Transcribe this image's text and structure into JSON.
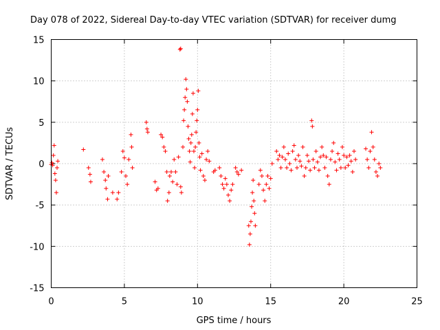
{
  "chart_data": {
    "type": "scatter",
    "title": "Day 078 of 2022, Sidereal Day-to-day VTEC variation (SDTVAR) for receiver dumg",
    "xlabel": "GPS time / hours",
    "ylabel": "SDTVAR / TECUs",
    "xlim": [
      0,
      25
    ],
    "ylim": [
      -15,
      15
    ],
    "x_ticks": [
      "0",
      "5",
      "10",
      "15",
      "20",
      "25"
    ],
    "y_ticks": [
      "15",
      "10",
      "5",
      "0",
      "-5",
      "-10",
      "-15"
    ],
    "grid": true,
    "marker": "plus",
    "color": "#ff0000",
    "series": [
      {
        "name": "SDTVAR",
        "points": [
          [
            0.0,
            -0.1
          ],
          [
            0.05,
            0.1
          ],
          [
            0.1,
            -0.2
          ],
          [
            0.15,
            1.0
          ],
          [
            0.2,
            2.2
          ],
          [
            0.25,
            -1.2
          ],
          [
            0.3,
            -2.0
          ],
          [
            0.35,
            -3.5
          ],
          [
            0.4,
            -0.5
          ],
          [
            0.45,
            0.3
          ],
          [
            2.2,
            1.7
          ],
          [
            2.55,
            -0.5
          ],
          [
            2.65,
            -1.3
          ],
          [
            2.7,
            -2.2
          ],
          [
            3.5,
            0.5
          ],
          [
            3.6,
            -1.0
          ],
          [
            3.7,
            -2.0
          ],
          [
            3.75,
            -3.0
          ],
          [
            3.85,
            -4.3
          ],
          [
            3.9,
            -1.5
          ],
          [
            4.2,
            -3.5
          ],
          [
            4.5,
            -4.3
          ],
          [
            4.6,
            -3.5
          ],
          [
            4.8,
            -1.0
          ],
          [
            4.9,
            1.5
          ],
          [
            5.0,
            0.7
          ],
          [
            5.1,
            -1.5
          ],
          [
            5.2,
            -2.5
          ],
          [
            5.3,
            0.5
          ],
          [
            5.45,
            3.5
          ],
          [
            5.5,
            2.0
          ],
          [
            5.55,
            -0.5
          ],
          [
            6.5,
            5.0
          ],
          [
            6.55,
            4.2
          ],
          [
            6.6,
            3.8
          ],
          [
            7.1,
            -2.2
          ],
          [
            7.2,
            -3.2
          ],
          [
            7.3,
            -3.0
          ],
          [
            7.5,
            3.5
          ],
          [
            7.6,
            3.2
          ],
          [
            7.7,
            2.0
          ],
          [
            7.8,
            1.5
          ],
          [
            7.9,
            -1.0
          ],
          [
            7.95,
            -4.5
          ],
          [
            8.05,
            -3.5
          ],
          [
            8.1,
            -1.5
          ],
          [
            8.2,
            -1.0
          ],
          [
            8.3,
            -2.2
          ],
          [
            8.4,
            0.5
          ],
          [
            8.5,
            -1.0
          ],
          [
            8.6,
            -2.5
          ],
          [
            8.7,
            0.8
          ],
          [
            8.85,
            -2.8
          ],
          [
            8.9,
            -3.5
          ],
          [
            8.8,
            13.8
          ],
          [
            8.85,
            13.9
          ],
          [
            9.0,
            2.0
          ],
          [
            9.05,
            5.2
          ],
          [
            9.1,
            6.5
          ],
          [
            9.15,
            8.0
          ],
          [
            9.2,
            10.2
          ],
          [
            9.25,
            9.0
          ],
          [
            9.3,
            7.5
          ],
          [
            9.35,
            4.5
          ],
          [
            9.4,
            3.0
          ],
          [
            9.45,
            1.5
          ],
          [
            9.5,
            0.2
          ],
          [
            9.55,
            2.5
          ],
          [
            9.6,
            3.5
          ],
          [
            9.65,
            6.0
          ],
          [
            9.7,
            8.5
          ],
          [
            9.75,
            1.5
          ],
          [
            9.8,
            -0.5
          ],
          [
            9.85,
            2.0
          ],
          [
            9.9,
            3.8
          ],
          [
            9.95,
            5.2
          ],
          [
            10.0,
            6.5
          ],
          [
            10.05,
            8.8
          ],
          [
            10.1,
            2.5
          ],
          [
            10.15,
            0.8
          ],
          [
            10.2,
            -0.8
          ],
          [
            10.3,
            1.2
          ],
          [
            10.4,
            -1.5
          ],
          [
            10.5,
            -2.0
          ],
          [
            10.6,
            0.5
          ],
          [
            10.7,
            1.5
          ],
          [
            10.8,
            0.3
          ],
          [
            11.1,
            -1.0
          ],
          [
            11.2,
            -0.8
          ],
          [
            11.5,
            -0.5
          ],
          [
            11.6,
            -1.5
          ],
          [
            11.7,
            -2.5
          ],
          [
            11.8,
            -3.0
          ],
          [
            11.9,
            -1.8
          ],
          [
            12.0,
            -2.5
          ],
          [
            12.1,
            -3.8
          ],
          [
            12.2,
            -4.5
          ],
          [
            12.3,
            -3.2
          ],
          [
            12.4,
            -2.5
          ],
          [
            12.6,
            -0.5
          ],
          [
            12.7,
            -1.0
          ],
          [
            12.8,
            -1.3
          ],
          [
            13.0,
            -0.8
          ],
          [
            13.5,
            -7.5
          ],
          [
            13.55,
            -9.8
          ],
          [
            13.6,
            -8.5
          ],
          [
            13.65,
            -7.0
          ],
          [
            13.7,
            -5.2
          ],
          [
            13.75,
            -3.5
          ],
          [
            13.8,
            -2.0
          ],
          [
            13.85,
            -4.5
          ],
          [
            13.9,
            -6.0
          ],
          [
            13.95,
            -7.5
          ],
          [
            14.2,
            -2.5
          ],
          [
            14.3,
            -0.8
          ],
          [
            14.4,
            -1.5
          ],
          [
            14.5,
            -3.2
          ],
          [
            14.6,
            -4.5
          ],
          [
            14.7,
            -2.5
          ],
          [
            14.8,
            -1.5
          ],
          [
            14.9,
            -3.0
          ],
          [
            15.0,
            -1.8
          ],
          [
            15.1,
            0.0
          ],
          [
            15.4,
            1.5
          ],
          [
            15.5,
            0.5
          ],
          [
            15.6,
            1.0
          ],
          [
            15.7,
            -0.5
          ],
          [
            15.8,
            0.8
          ],
          [
            15.9,
            2.0
          ],
          [
            16.0,
            0.5
          ],
          [
            16.1,
            -0.5
          ],
          [
            16.2,
            1.2
          ],
          [
            16.3,
            0.0
          ],
          [
            16.4,
            -0.8
          ],
          [
            16.5,
            1.5
          ],
          [
            16.6,
            2.2
          ],
          [
            16.7,
            0.5
          ],
          [
            16.8,
            -0.5
          ],
          [
            16.9,
            1.0
          ],
          [
            17.0,
            0.3
          ],
          [
            17.1,
            -0.3
          ],
          [
            17.2,
            2.0
          ],
          [
            17.3,
            -1.5
          ],
          [
            17.4,
            -0.5
          ],
          [
            17.5,
            1.0
          ],
          [
            17.6,
            0.3
          ],
          [
            17.7,
            -0.8
          ],
          [
            17.8,
            5.2
          ],
          [
            17.85,
            4.5
          ],
          [
            17.9,
            0.5
          ],
          [
            18.0,
            -0.5
          ],
          [
            18.1,
            1.5
          ],
          [
            18.2,
            0.2
          ],
          [
            18.3,
            -0.8
          ],
          [
            18.4,
            0.8
          ],
          [
            18.5,
            2.0
          ],
          [
            18.6,
            1.0
          ],
          [
            18.7,
            -0.5
          ],
          [
            18.8,
            0.8
          ],
          [
            18.9,
            -1.5
          ],
          [
            19.0,
            -2.5
          ],
          [
            19.1,
            0.5
          ],
          [
            19.2,
            1.5
          ],
          [
            19.3,
            2.5
          ],
          [
            19.4,
            0.2
          ],
          [
            19.5,
            -0.8
          ],
          [
            19.6,
            1.2
          ],
          [
            19.7,
            0.5
          ],
          [
            19.8,
            -0.5
          ],
          [
            19.9,
            2.0
          ],
          [
            20.0,
            1.0
          ],
          [
            20.1,
            -0.5
          ],
          [
            20.2,
            0.8
          ],
          [
            20.3,
            -0.2
          ],
          [
            20.4,
            1.0
          ],
          [
            20.5,
            0.3
          ],
          [
            20.6,
            -1.0
          ],
          [
            20.7,
            1.5
          ],
          [
            20.8,
            0.5
          ],
          [
            21.5,
            1.8
          ],
          [
            21.6,
            0.5
          ],
          [
            21.7,
            -0.5
          ],
          [
            21.8,
            1.5
          ],
          [
            21.9,
            3.8
          ],
          [
            22.0,
            2.0
          ],
          [
            22.1,
            0.5
          ],
          [
            22.2,
            -1.0
          ],
          [
            22.3,
            -1.5
          ],
          [
            22.4,
            0.0
          ],
          [
            22.5,
            -0.5
          ]
        ]
      }
    ]
  }
}
